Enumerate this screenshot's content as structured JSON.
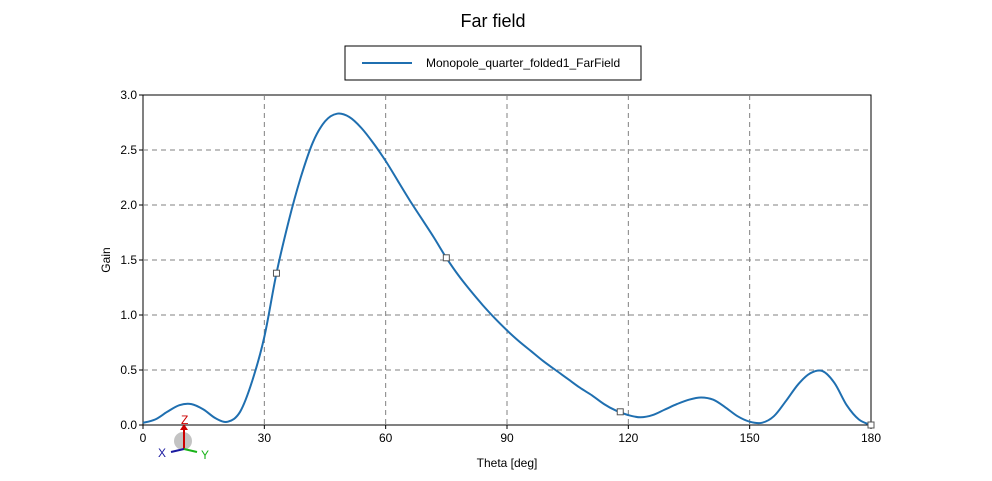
{
  "chart_data": {
    "type": "line",
    "title": "Far field",
    "xlabel": "Theta [deg]",
    "ylabel": "Gain",
    "xlim": [
      0,
      180
    ],
    "ylim": [
      0,
      3.0
    ],
    "xticks": [
      0,
      30,
      60,
      90,
      120,
      150,
      180
    ],
    "yticks": [
      0.0,
      0.5,
      1.0,
      1.5,
      2.0,
      2.5,
      3.0
    ],
    "grid": true,
    "legend_position": "top-center",
    "series": [
      {
        "name": "Monopole_quarter_folded1_FarField",
        "color": "#1f6fb0",
        "x": [
          0,
          3,
          6,
          9,
          12,
          15,
          18,
          21,
          24,
          27,
          30,
          33,
          36,
          39,
          42,
          45,
          48,
          51,
          54,
          57,
          60,
          63,
          66,
          69,
          72,
          75,
          78,
          81,
          84,
          87,
          90,
          93,
          96,
          99,
          102,
          105,
          108,
          111,
          114,
          117,
          120,
          123,
          126,
          129,
          132,
          135,
          138,
          141,
          144,
          147,
          150,
          153,
          156,
          159,
          162,
          165,
          168,
          171,
          174,
          177,
          180
        ],
        "y": [
          0.02,
          0.05,
          0.12,
          0.18,
          0.19,
          0.14,
          0.06,
          0.03,
          0.12,
          0.4,
          0.8,
          1.38,
          1.85,
          2.25,
          2.57,
          2.76,
          2.83,
          2.8,
          2.7,
          2.56,
          2.4,
          2.22,
          2.04,
          1.87,
          1.7,
          1.52,
          1.36,
          1.22,
          1.09,
          0.97,
          0.86,
          0.76,
          0.67,
          0.58,
          0.5,
          0.42,
          0.34,
          0.27,
          0.19,
          0.13,
          0.09,
          0.07,
          0.09,
          0.14,
          0.19,
          0.23,
          0.25,
          0.23,
          0.16,
          0.08,
          0.03,
          0.02,
          0.08,
          0.22,
          0.37,
          0.47,
          0.49,
          0.38,
          0.18,
          0.05,
          0.0
        ],
        "markers": [
          [
            33,
            1.38
          ],
          [
            75,
            1.52
          ],
          [
            118,
            0.12
          ],
          [
            180,
            0.0
          ]
        ]
      }
    ]
  },
  "axes_triad": {
    "z_label": "Z",
    "x_label": "X",
    "y_label": "Y",
    "z_color": "#cc0000",
    "x_color": "#1a1aa0",
    "y_color": "#19b319"
  }
}
